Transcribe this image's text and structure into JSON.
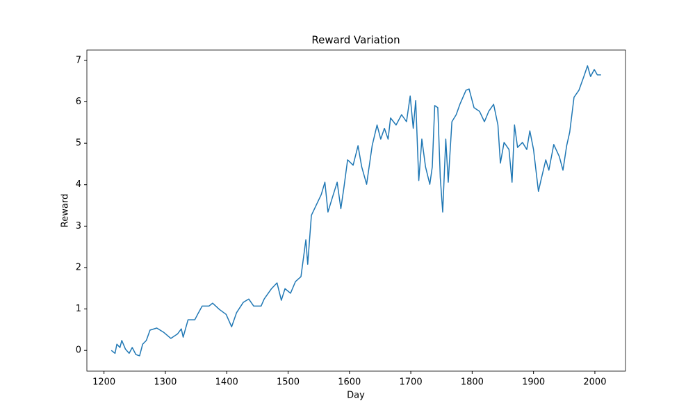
{
  "chart_data": {
    "type": "line",
    "title": "Reward Variation",
    "x_label": "Day",
    "y_label": "Reward",
    "x": [
      1212,
      1218,
      1221,
      1226,
      1229,
      1235,
      1241,
      1246,
      1252,
      1258,
      1263,
      1269,
      1275,
      1286,
      1297,
      1309,
      1320,
      1326,
      1329,
      1337,
      1348,
      1354,
      1360,
      1371,
      1377,
      1388,
      1399,
      1408,
      1416,
      1427,
      1436,
      1444,
      1456,
      1461,
      1473,
      1482,
      1489,
      1495,
      1504,
      1512,
      1521,
      1529,
      1532,
      1538,
      1546,
      1554,
      1560,
      1565,
      1572,
      1580,
      1586,
      1591,
      1597,
      1606,
      1614,
      1620,
      1628,
      1637,
      1645,
      1651,
      1657,
      1663,
      1667,
      1676,
      1685,
      1693,
      1699,
      1704,
      1708,
      1713,
      1718,
      1724,
      1731,
      1735,
      1739,
      1744,
      1748,
      1752,
      1757,
      1761,
      1767,
      1774,
      1780,
      1790,
      1795,
      1803,
      1812,
      1820,
      1827,
      1835,
      1842,
      1846,
      1852,
      1860,
      1865,
      1869,
      1874,
      1882,
      1889,
      1894,
      1900,
      1908,
      1912,
      1920,
      1925,
      1933,
      1942,
      1948,
      1954,
      1959,
      1966,
      1974,
      1982,
      1988,
      1993,
      1999,
      2004,
      2010
    ],
    "series": [
      {
        "name": "Reward",
        "color": "#1f77b4",
        "values": [
          0,
          -0.07,
          0.15,
          0.07,
          0.24,
          0.03,
          -0.07,
          0.07,
          -0.1,
          -0.13,
          0.15,
          0.24,
          0.49,
          0.54,
          0.44,
          0.29,
          0.4,
          0.52,
          0.32,
          0.74,
          0.74,
          0.91,
          1.07,
          1.07,
          1.14,
          0.99,
          0.87,
          0.57,
          0.91,
          1.16,
          1.24,
          1.07,
          1.07,
          1.24,
          1.49,
          1.63,
          1.21,
          1.49,
          1.38,
          1.66,
          1.78,
          2.67,
          2.08,
          3.26,
          3.51,
          3.76,
          4.06,
          3.34,
          3.68,
          4.06,
          3.42,
          3.93,
          4.6,
          4.47,
          4.94,
          4.43,
          4.01,
          4.94,
          5.44,
          5.1,
          5.36,
          5.1,
          5.61,
          5.44,
          5.69,
          5.52,
          6.14,
          5.36,
          6.03,
          4.1,
          5.1,
          4.43,
          4.01,
          4.43,
          5.91,
          5.86,
          4.18,
          3.34,
          5.1,
          4.06,
          5.52,
          5.69,
          5.94,
          6.28,
          6.31,
          5.86,
          5.77,
          5.52,
          5.77,
          5.94,
          5.44,
          4.52,
          5.02,
          4.85,
          4.06,
          5.44,
          4.9,
          5.02,
          4.85,
          5.3,
          4.85,
          3.84,
          4.1,
          4.6,
          4.35,
          4.97,
          4.68,
          4.35,
          4.94,
          5.27,
          6.11,
          6.28,
          6.61,
          6.87,
          6.61,
          6.78,
          6.65,
          6.65
        ]
      }
    ],
    "xlim": [
      1172.1,
      2049.9
    ],
    "ylim": [
      -0.5,
      7.25
    ],
    "xticks": [
      1200,
      1300,
      1400,
      1500,
      1600,
      1700,
      1800,
      1900,
      2000
    ],
    "yticks": [
      0,
      1,
      2,
      3,
      4,
      5,
      6,
      7
    ]
  }
}
